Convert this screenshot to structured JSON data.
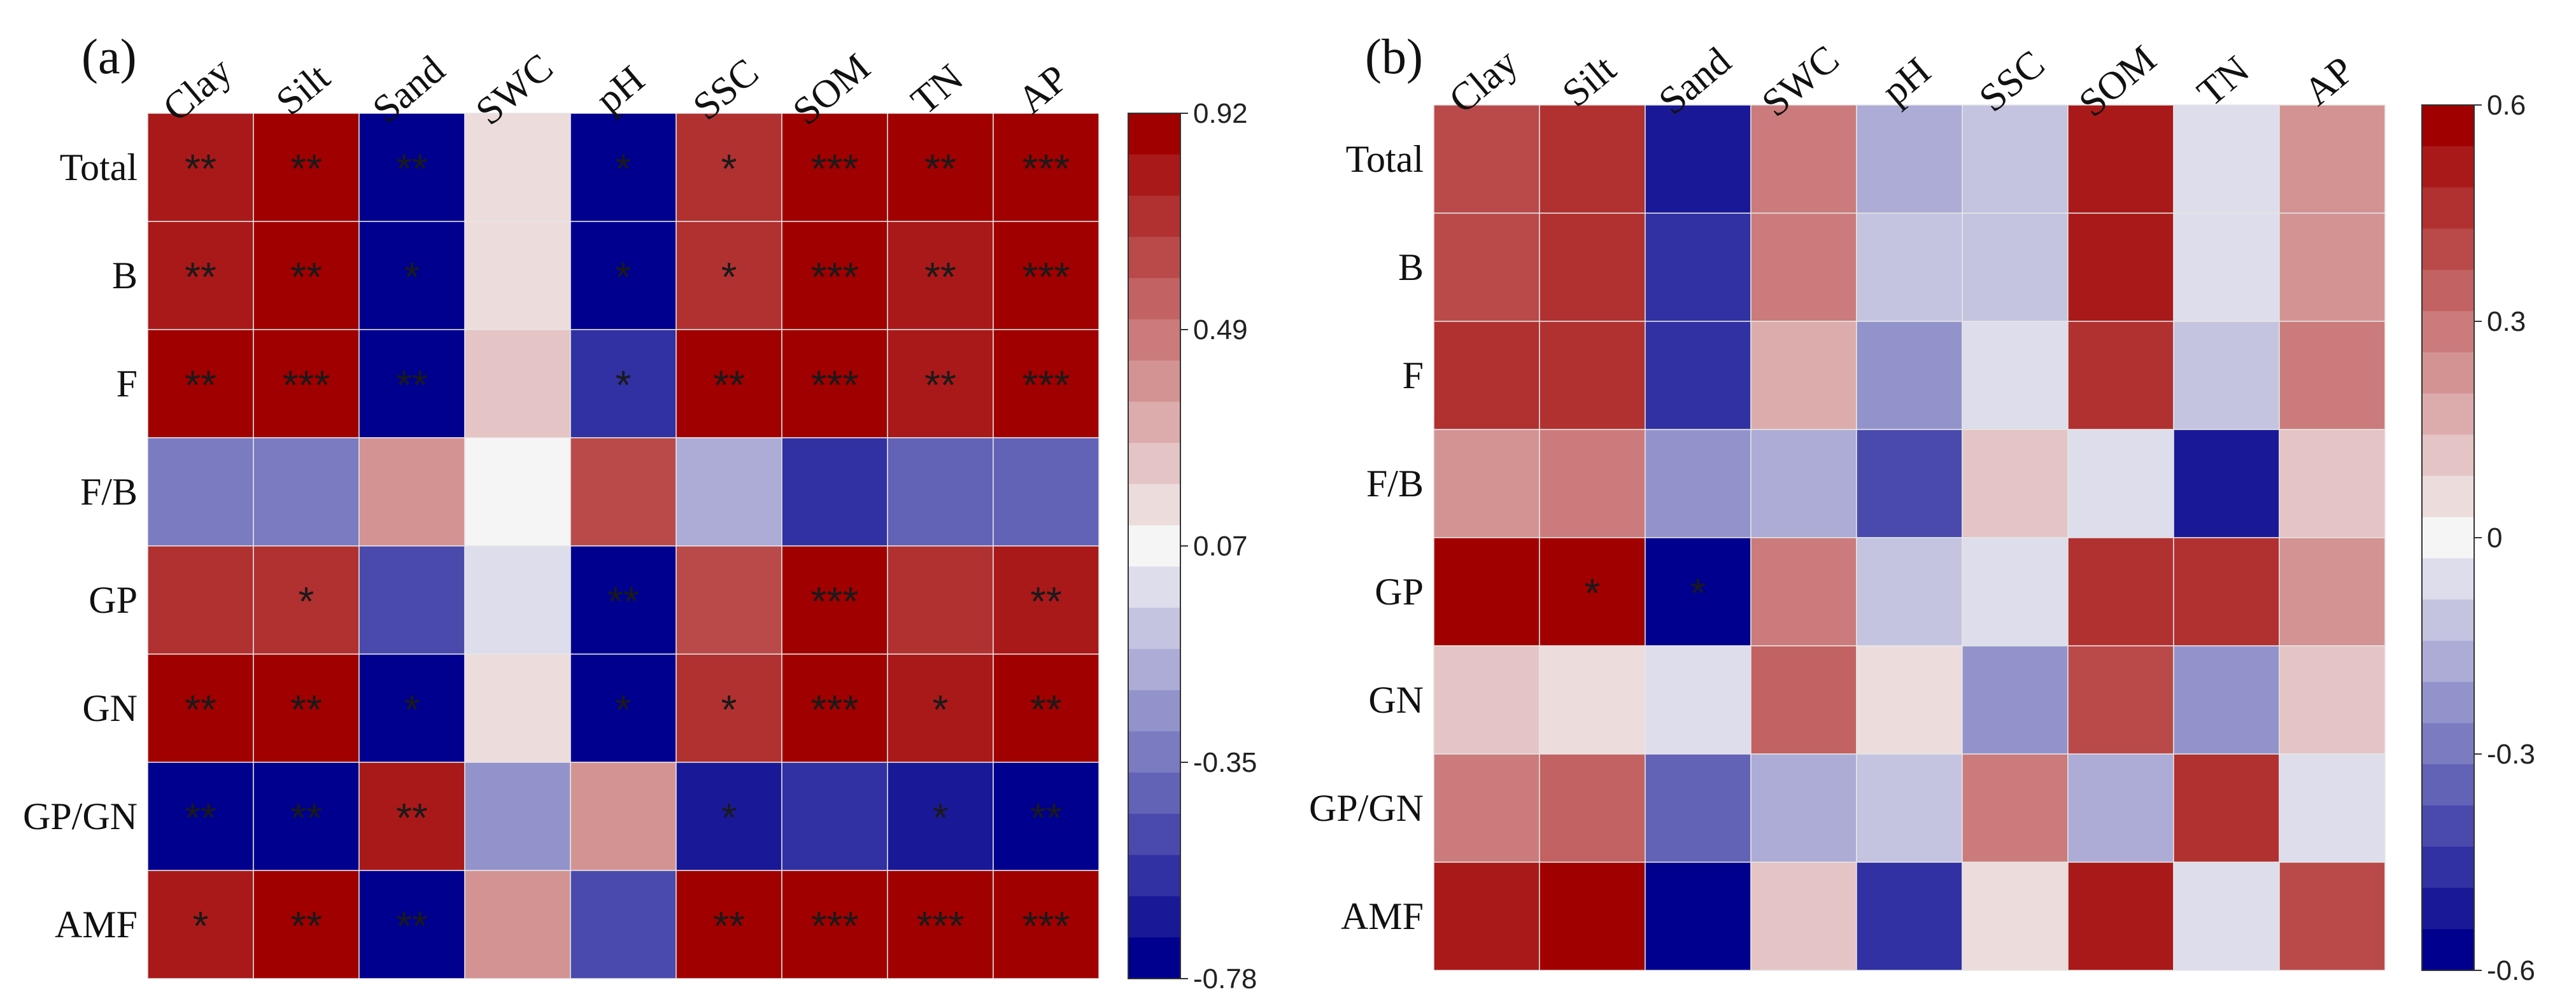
{
  "chart_data": [
    {
      "type": "heatmap",
      "panel_label": "(a)",
      "columns": [
        "Clay",
        "Silt",
        "Sand",
        "SWC",
        "pH",
        "SSC",
        "SOM",
        "TN",
        "AP"
      ],
      "rows": [
        "Total",
        "B",
        "F",
        "F/B",
        "GP",
        "GN",
        "GP/GN",
        "AMF"
      ],
      "values": [
        [
          0.8,
          0.86,
          -0.71,
          0.16,
          -0.7,
          0.72,
          0.92,
          0.85,
          0.92
        ],
        [
          0.8,
          0.86,
          -0.7,
          0.12,
          -0.7,
          0.72,
          0.92,
          0.8,
          0.92
        ],
        [
          0.86,
          0.88,
          -0.76,
          0.27,
          -0.6,
          0.85,
          0.92,
          0.83,
          0.92
        ],
        [
          -0.33,
          -0.35,
          0.38,
          0.05,
          0.66,
          -0.18,
          -0.55,
          -0.38,
          -0.42
        ],
        [
          0.68,
          0.71,
          -0.53,
          -0.02,
          -0.78,
          0.6,
          0.92,
          0.75,
          0.8
        ],
        [
          0.84,
          0.86,
          -0.7,
          0.15,
          -0.7,
          0.72,
          0.92,
          0.78,
          0.88
        ],
        [
          -0.76,
          -0.76,
          0.8,
          -0.24,
          0.36,
          -0.68,
          -0.6,
          -0.68,
          -0.7
        ],
        [
          0.8,
          0.86,
          -0.7,
          0.37,
          -0.52,
          0.86,
          0.92,
          0.9,
          0.92
        ]
      ],
      "significance": [
        [
          "**",
          "**",
          "**",
          "",
          "*",
          "*",
          "***",
          "**",
          "***"
        ],
        [
          "**",
          "**",
          "*",
          "",
          "*",
          "*",
          "***",
          "**",
          "***"
        ],
        [
          "**",
          "***",
          "**",
          "",
          "*",
          "**",
          "***",
          "**",
          "***"
        ],
        [
          "",
          "",
          "",
          "",
          "",
          "",
          "",
          "",
          ""
        ],
        [
          "",
          "*",
          "",
          "",
          "**",
          "",
          "***",
          "",
          "**"
        ],
        [
          "**",
          "**",
          "*",
          "",
          "*",
          "*",
          "***",
          "*",
          "**"
        ],
        [
          "**",
          "**",
          "**",
          "",
          "",
          "*",
          "",
          "*",
          "**"
        ],
        [
          "*",
          "**",
          "**",
          "",
          "",
          "**",
          "***",
          "***",
          "***"
        ]
      ],
      "colorbar": {
        "min": -0.78,
        "max": 0.92,
        "ticks": [
          "0.92",
          "0.49",
          "0.07",
          "-0.35",
          "-0.78"
        ]
      }
    },
    {
      "type": "heatmap",
      "panel_label": "(b)",
      "columns": [
        "Clay",
        "Silt",
        "Sand",
        "SWC",
        "pH",
        "SSC",
        "SOM",
        "TN",
        "AP"
      ],
      "rows": [
        "Total",
        "B",
        "F",
        "F/B",
        "GP",
        "GN",
        "GP/GN",
        "AMF"
      ],
      "values": [
        [
          0.4,
          0.46,
          -0.5,
          0.26,
          -0.18,
          -0.1,
          0.52,
          -0.08,
          0.2
        ],
        [
          0.42,
          0.46,
          -0.48,
          0.28,
          -0.12,
          -0.1,
          0.53,
          -0.03,
          0.22
        ],
        [
          0.46,
          0.46,
          -0.48,
          0.18,
          -0.25,
          -0.03,
          0.46,
          -0.1,
          0.3
        ],
        [
          0.22,
          0.26,
          -0.24,
          -0.18,
          -0.38,
          0.12,
          -0.05,
          -0.5,
          0.12
        ],
        [
          0.56,
          0.6,
          -0.6,
          0.28,
          -0.1,
          -0.05,
          0.46,
          0.46,
          0.22
        ],
        [
          0.1,
          0.03,
          -0.05,
          0.36,
          0.03,
          -0.22,
          0.4,
          -0.22,
          0.14
        ],
        [
          0.28,
          0.34,
          -0.32,
          -0.18,
          -0.1,
          0.28,
          -0.2,
          0.48,
          -0.04
        ],
        [
          0.5,
          0.55,
          -0.57,
          0.12,
          -0.47,
          0.04,
          0.52,
          -0.04,
          0.4
        ]
      ],
      "significance": [
        [
          "",
          "",
          "",
          "",
          "",
          "",
          "",
          "",
          ""
        ],
        [
          "",
          "",
          "",
          "",
          "",
          "",
          "",
          "",
          ""
        ],
        [
          "",
          "",
          "",
          "",
          "",
          "",
          "",
          "",
          ""
        ],
        [
          "",
          "",
          "",
          "",
          "",
          "",
          "",
          "",
          ""
        ],
        [
          "",
          "*",
          "*",
          "",
          "",
          "",
          "",
          "",
          ""
        ],
        [
          "",
          "",
          "",
          "",
          "",
          "",
          "",
          "",
          ""
        ],
        [
          "",
          "",
          "",
          "",
          "",
          "",
          "",
          "",
          ""
        ],
        [
          "",
          "",
          "",
          "",
          "",
          "",
          "",
          "",
          ""
        ]
      ],
      "colorbar": {
        "min": -0.6,
        "max": 0.6,
        "ticks": [
          "0.6",
          "0.3",
          "0",
          "-0.3",
          "-0.6"
        ]
      }
    }
  ],
  "colors": {
    "high": "#a00000",
    "mid": "#f5f5f5",
    "low": "#00008e",
    "grid": "#e6e6e6",
    "text": "#111111"
  }
}
